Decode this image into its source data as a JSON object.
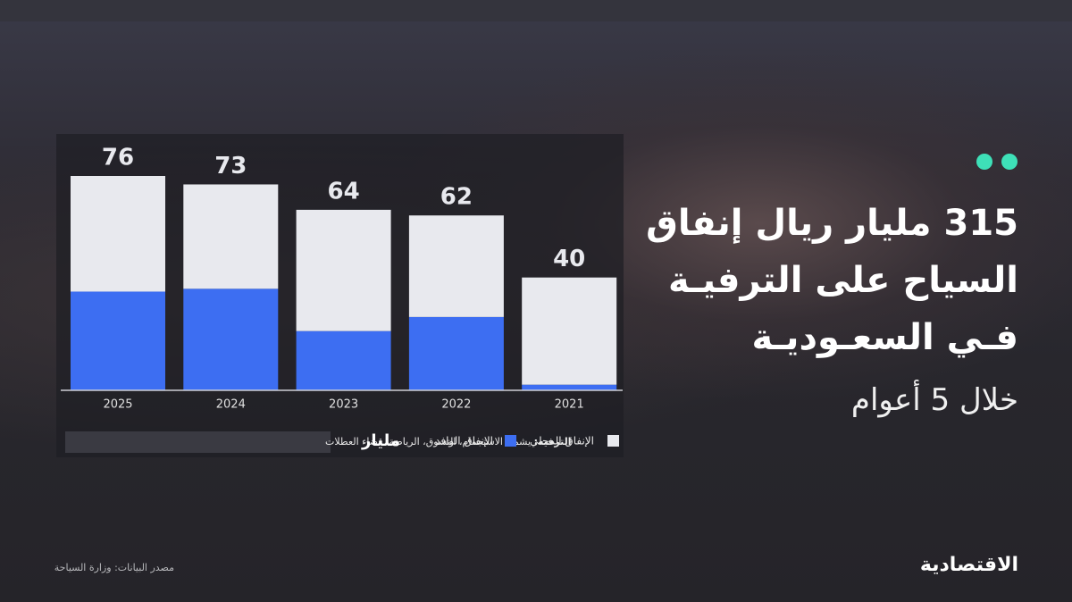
{
  "chart_data": {
    "type": "stacked-bar",
    "title_lines": [
      "315 مليار ريال إنفاق",
      "السياح على الترفيـة",
      "فـي السعـوديـة"
    ],
    "subtitle": "خلال 5 أعوام",
    "categories": [
      "2025",
      "2024",
      "2023",
      "2022",
      "2021"
    ],
    "series": [
      {
        "name": "الإنفاق الوافد",
        "color": "#3d6ef2",
        "values": [
          35,
          36,
          21,
          26,
          2
        ]
      },
      {
        "name": "الإنفاق المحلي",
        "color": "#e8e9ee",
        "values": [
          41,
          37,
          43,
          36,
          38
        ]
      }
    ],
    "totals": [
      76,
      73,
      64,
      62,
      40
    ],
    "unit_logo": "مليار",
    "note_term": "الترفيه:",
    "note_text": "يشمل الاستجمام، التسوق، الرياضة، قضاء العطلات",
    "source": "مصدر البيانات: وزارة السياحة",
    "brand": "الاقتصادية"
  }
}
